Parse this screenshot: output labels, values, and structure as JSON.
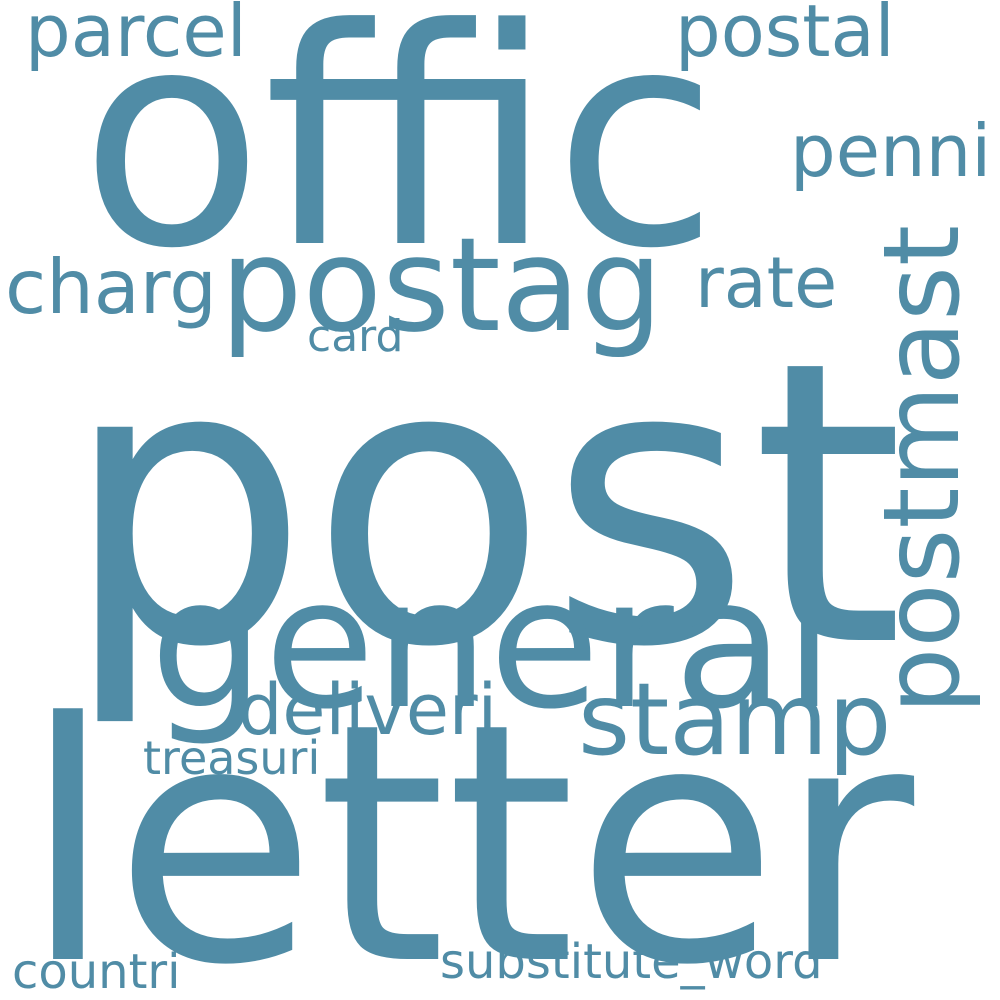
{
  "color": "#508ca6",
  "background": "#ffffff",
  "words": {
    "post": "post",
    "letter": "letter",
    "offic": "offic",
    "general": "general",
    "postmast": "postmast",
    "postag": "postag",
    "stamp": "stamp",
    "deliveri": "deliveri",
    "charg": "charg",
    "rate": "rate",
    "parcel": "parcel",
    "postal": "postal",
    "penni": "penni",
    "card": "card",
    "treasuri": "treasuri",
    "countri": "countri",
    "substitute_word": "substitute_word"
  }
}
